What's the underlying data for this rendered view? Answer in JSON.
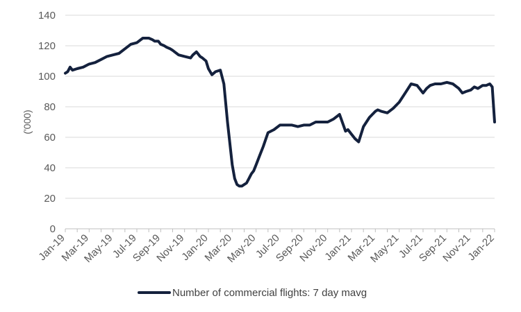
{
  "chart_data": {
    "type": "line",
    "title": "",
    "xlabel": "",
    "ylabel": "('000)",
    "ylim": [
      0,
      140
    ],
    "yticks": [
      0,
      20,
      40,
      60,
      80,
      100,
      120,
      140
    ],
    "grid": "horizontal",
    "legend_position": "bottom",
    "line_color": "#14213d",
    "x_tick_labels": [
      "Jan-19",
      "Mar-19",
      "May-19",
      "Jul-19",
      "Sep-19",
      "Nov-19",
      "Jan-20",
      "Mar-20",
      "May-20",
      "Jul-20",
      "Sep-20",
      "Nov-20",
      "Jan-21",
      "Mar-21",
      "May-21",
      "Jul-21",
      "Sep-21",
      "Nov-21",
      "Jan-22"
    ],
    "series": [
      {
        "name": "Number of commercial flights: 7 day mavg",
        "x_months": [
          0,
          0.2,
          0.4,
          0.6,
          1,
          1.5,
          2,
          2.5,
          3,
          3.5,
          4,
          4.5,
          5,
          5.5,
          6,
          6.5,
          7,
          7.3,
          7.5,
          7.8,
          8,
          8.3,
          8.5,
          8.8,
          9,
          9.5,
          10,
          10.5,
          10.7,
          11,
          11.3,
          11.5,
          11.8,
          12,
          12.3,
          12.6,
          13,
          13.3,
          13.6,
          14,
          14.2,
          14.4,
          14.6,
          14.8,
          15,
          15.2,
          15.4,
          15.6,
          15.8,
          16,
          16.3,
          16.6,
          17,
          17.5,
          18,
          18.5,
          19,
          19.5,
          20,
          20.5,
          21,
          21.5,
          22,
          22.5,
          23,
          23.5,
          23.7,
          24,
          24.3,
          24.6,
          25,
          25.5,
          26,
          26.2,
          26.5,
          27,
          27.5,
          28,
          28.5,
          29,
          29.5,
          30,
          30.3,
          30.6,
          31,
          31.5,
          32,
          32.5,
          33,
          33.3,
          33.6,
          34,
          34.3,
          34.6,
          35,
          35.3,
          35.6,
          35.8,
          36
        ],
        "values": [
          102,
          103,
          106,
          104,
          105,
          106,
          108,
          109,
          111,
          113,
          114,
          115,
          118,
          121,
          122,
          125,
          125,
          124,
          123,
          123,
          121,
          120,
          119,
          118,
          117,
          114,
          113,
          112,
          114,
          116,
          113,
          112,
          110,
          105,
          101,
          103,
          104,
          95,
          70,
          42,
          33,
          29,
          28,
          28,
          29,
          30,
          33,
          36,
          38,
          42,
          48,
          54,
          63,
          65,
          68,
          68,
          68,
          67,
          68,
          68,
          70,
          70,
          70,
          72,
          75,
          64,
          65,
          62,
          59,
          57,
          67,
          73,
          77,
          78,
          77,
          76,
          79,
          83,
          89,
          95,
          94,
          89,
          92,
          94,
          95,
          95,
          96,
          95,
          92,
          89,
          90,
          91,
          93,
          92,
          94,
          94,
          95,
          93,
          70
        ]
      }
    ]
  }
}
